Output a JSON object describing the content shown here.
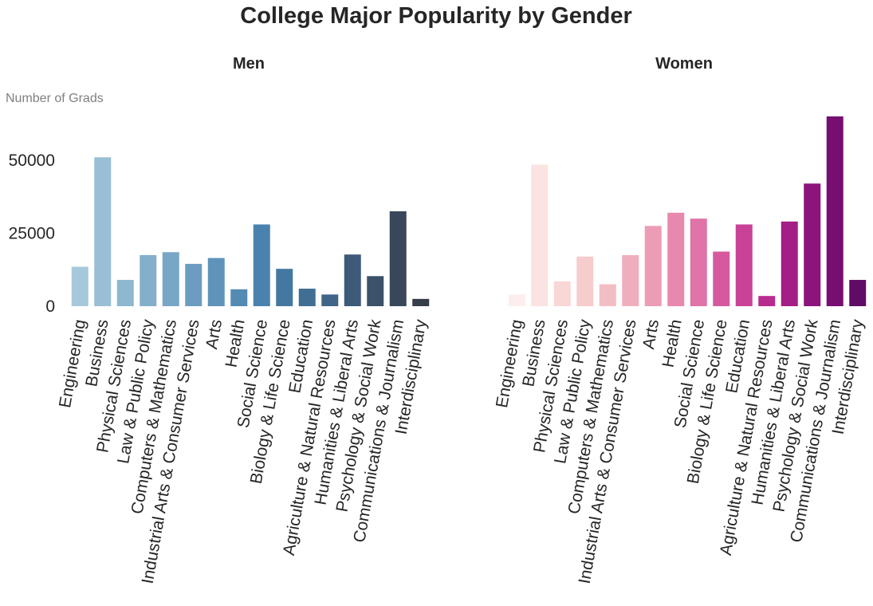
{
  "title": "College Major Popularity by Gender",
  "chart_data": [
    {
      "type": "bar",
      "panel_title": "Men",
      "ylabel": "Number of Grads",
      "xlabel": "",
      "ylim": [
        0,
        65000
      ],
      "yticks": [
        0,
        25000,
        50000
      ],
      "ytick_labels": [
        "0",
        "25000",
        "50000"
      ],
      "categories": [
        "Engineering",
        "Business",
        "Physical Sciences",
        "Law & Public Policy",
        "Computers & Mathematics",
        "Industrial Arts & Consumer Services",
        "Arts",
        "Health",
        "Social Science",
        "Biology & Life Science",
        "Education",
        "Agriculture & Natural Resources",
        "Humanities & Liberal Arts",
        "Psychology & Social Work",
        "Communications & Journalism",
        "Interdisciplinary"
      ],
      "values": [
        13500,
        51000,
        9000,
        17500,
        18500,
        14500,
        16500,
        5800,
        28000,
        12800,
        6000,
        4000,
        17700,
        10300,
        32500,
        2500
      ],
      "colors": [
        "#a6c8db",
        "#98bfd6",
        "#8eb7d1",
        "#83afcb",
        "#78a6c6",
        "#6c9dc0",
        "#5f94ba",
        "#538bb3",
        "#4a82ad",
        "#4478a1",
        "#416f94",
        "#3f6587",
        "#3d5b78",
        "#3b526a",
        "#38485a",
        "#363e4a"
      ],
      "grid": false,
      "legend": "none"
    },
    {
      "type": "bar",
      "panel_title": "Women",
      "xlabel": "",
      "ylim": [
        0,
        65000
      ],
      "categories": [
        "Engineering",
        "Business",
        "Physical Sciences",
        "Law & Public Policy",
        "Computers & Mathematics",
        "Industrial Arts & Consumer Services",
        "Arts",
        "Health",
        "Social Science",
        "Biology & Life Science",
        "Education",
        "Agriculture & Natural Resources",
        "Humanities & Liberal Arts",
        "Psychology & Social Work",
        "Communications & Journalism",
        "Interdisciplinary"
      ],
      "values": [
        4000,
        48500,
        8500,
        17000,
        7500,
        17500,
        27500,
        32000,
        30000,
        18700,
        28000,
        3500,
        29000,
        42000,
        65000,
        9000
      ],
      "colors": [
        "#fdeeed",
        "#fae3e1",
        "#f8d7d6",
        "#f6cccd",
        "#f3bdc4",
        "#f0aebc",
        "#ec9db5",
        "#e788ae",
        "#e073a8",
        "#d6599f",
        "#c94297",
        "#b82b8f",
        "#a31e86",
        "#8d137d",
        "#770e72",
        "#600c66"
      ],
      "grid": false,
      "legend": "none"
    }
  ]
}
